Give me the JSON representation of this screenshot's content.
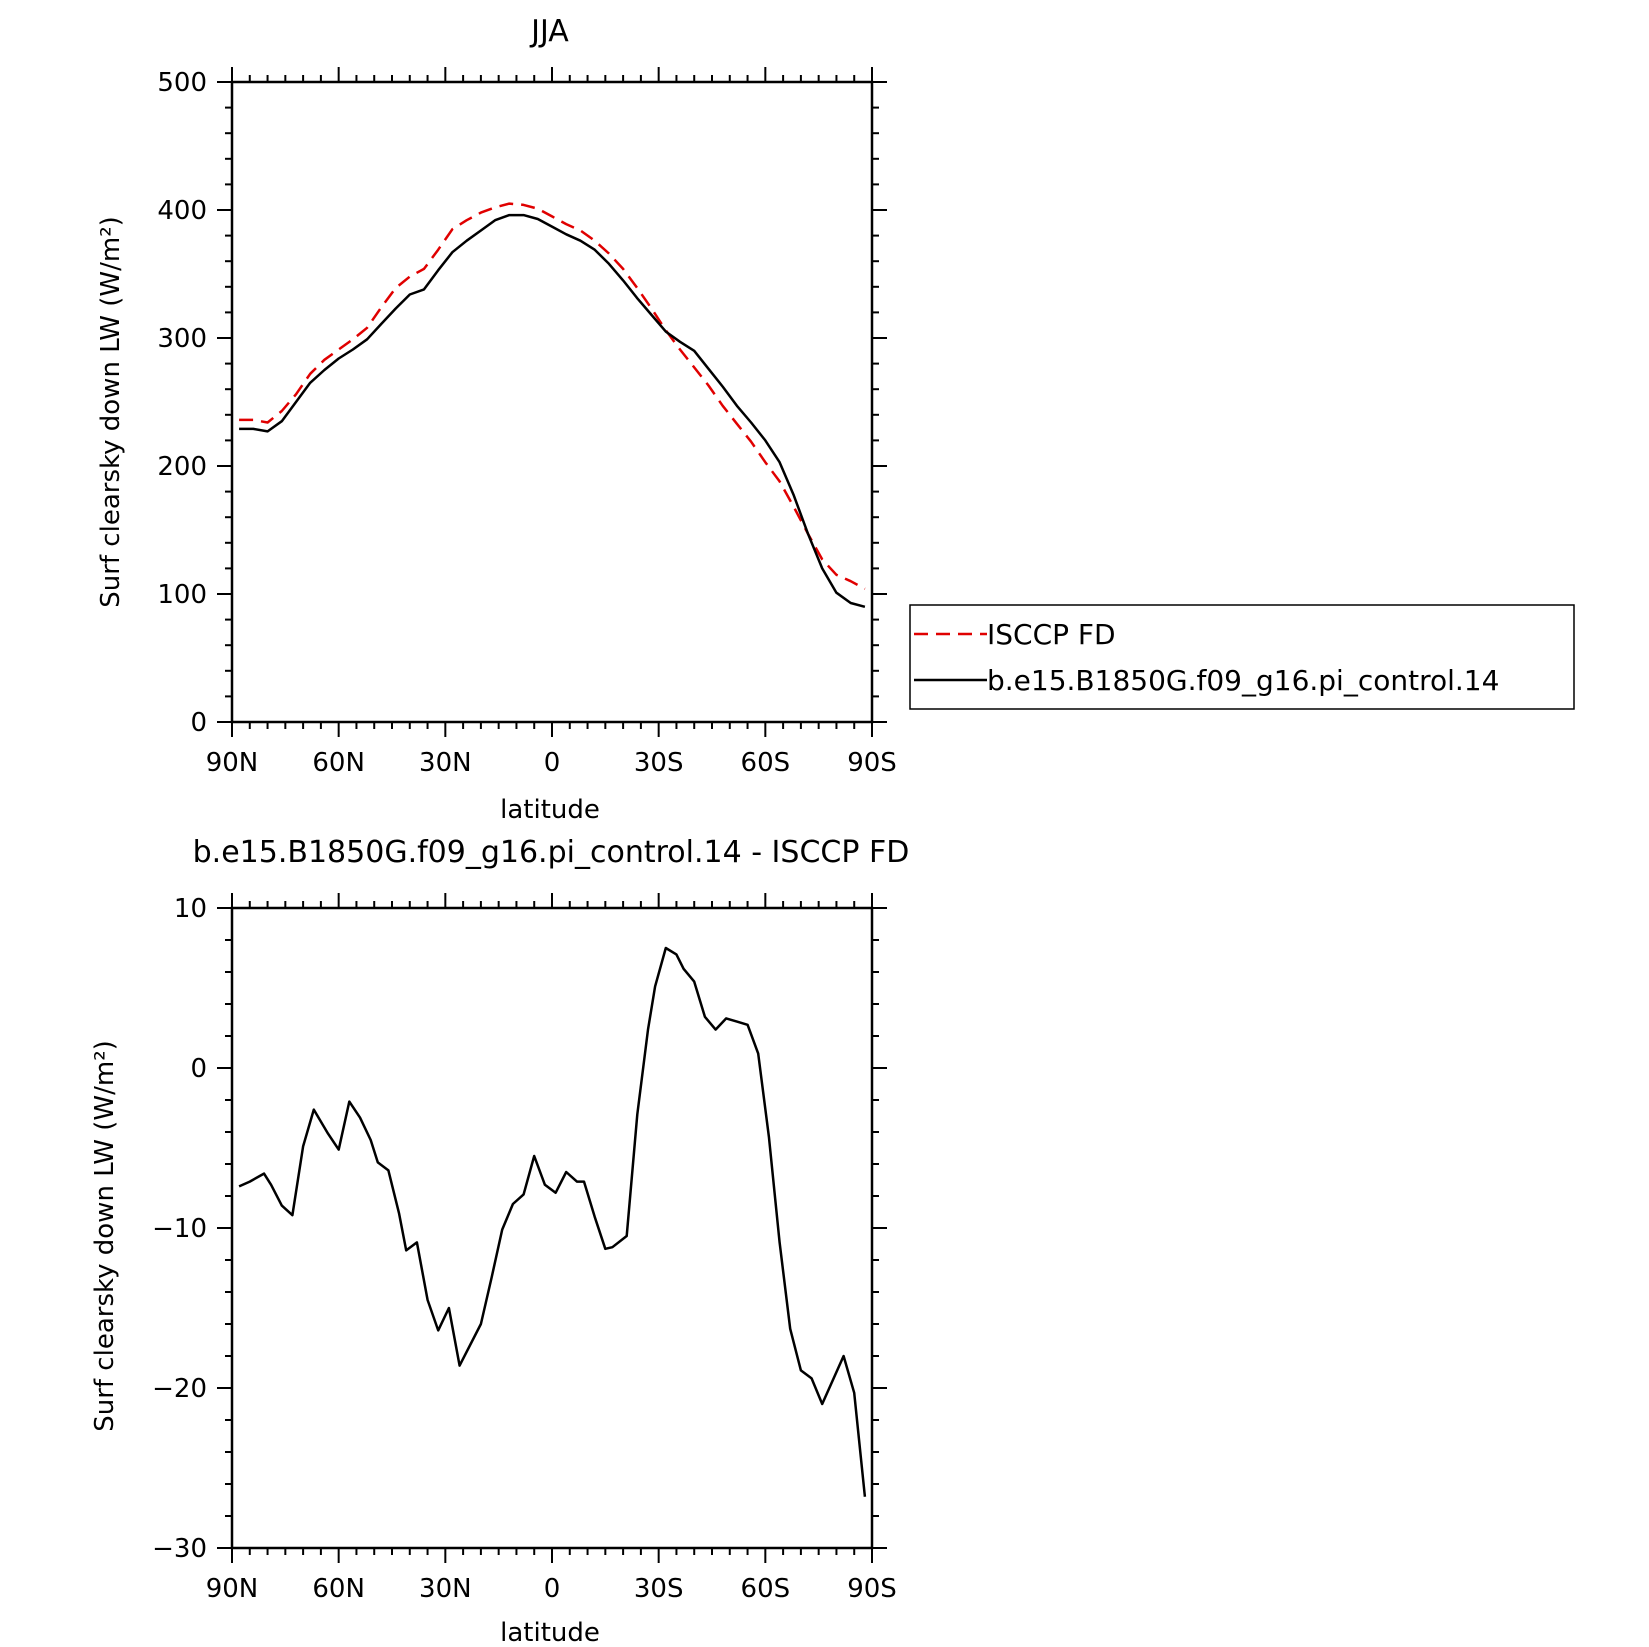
{
  "chart_data": [
    {
      "type": "line",
      "title": "JJA",
      "xlabel": "latitude",
      "ylabel": "Surf clearsky down LW (W/m²)",
      "xlim": [
        90,
        -90
      ],
      "ylim": [
        0,
        500
      ],
      "xticks": [
        90,
        60,
        30,
        0,
        -30,
        -60,
        -90
      ],
      "xtick_labels": [
        "90N",
        "60N",
        "30N",
        "0",
        "30S",
        "60S",
        "90S"
      ],
      "yticks": [
        0,
        100,
        200,
        300,
        400,
        500
      ],
      "ytick_labels": [
        "0",
        "100",
        "200",
        "300",
        "400",
        "500"
      ],
      "legend_position": "right",
      "series": [
        {
          "name": "ISCCP FD",
          "color": "#e00000",
          "dash": "dashed",
          "x": [
            88,
            84,
            80,
            76,
            72,
            68,
            64,
            60,
            56,
            52,
            48,
            44,
            40,
            36,
            32,
            28,
            24,
            20,
            16,
            12,
            8,
            4,
            0,
            -4,
            -8,
            -12,
            -16,
            -20,
            -24,
            -28,
            -32,
            -36,
            -40,
            -44,
            -48,
            -52,
            -56,
            -60,
            -64,
            -68,
            -72,
            -76,
            -80,
            -84,
            -88
          ],
          "y": [
            236,
            236,
            234,
            243,
            256,
            272,
            283,
            291,
            299,
            308,
            324,
            339,
            348,
            354,
            369,
            385,
            392,
            398,
            402,
            405,
            404,
            401,
            395,
            389,
            384,
            376,
            366,
            354,
            339,
            323,
            306,
            291,
            277,
            263,
            247,
            233,
            219,
            203,
            188,
            168,
            147,
            127,
            115,
            110,
            104
          ]
        },
        {
          "name": "b.e15.B1850G.f09_g16.pi_control.14",
          "color": "#000000",
          "dash": "solid",
          "x": [
            88,
            84,
            80,
            76,
            72,
            68,
            64,
            60,
            56,
            52,
            48,
            44,
            40,
            36,
            32,
            28,
            24,
            20,
            16,
            12,
            8,
            4,
            0,
            -4,
            -8,
            -12,
            -16,
            -20,
            -24,
            -28,
            -32,
            -36,
            -40,
            -44,
            -48,
            -52,
            -56,
            -60,
            -64,
            -68,
            -72,
            -76,
            -80,
            -84,
            -88
          ],
          "y": [
            229,
            229,
            227,
            235,
            250,
            265,
            275,
            284,
            291,
            299,
            311,
            323,
            334,
            338,
            353,
            367,
            376,
            384,
            392,
            396,
            396,
            393,
            387,
            381,
            376,
            369,
            358,
            345,
            331,
            318,
            305,
            297,
            290,
            276,
            262,
            247,
            234,
            220,
            203,
            177,
            147,
            120,
            101,
            93,
            90
          ]
        }
      ]
    },
    {
      "type": "line",
      "title": "b.e15.B1850G.f09_g16.pi_control.14 - ISCCP FD",
      "xlabel": "latitude",
      "ylabel": "Surf clearsky down LW (W/m²)",
      "xlim": [
        90,
        -90
      ],
      "ylim": [
        -30,
        10
      ],
      "xticks": [
        90,
        60,
        30,
        0,
        -30,
        -60,
        -90
      ],
      "xtick_labels": [
        "90N",
        "60N",
        "30N",
        "0",
        "30S",
        "60S",
        "90S"
      ],
      "yticks": [
        -30,
        -20,
        -10,
        0,
        10
      ],
      "ytick_labels": [
        "−30",
        "−20",
        "−10",
        "0",
        "10"
      ],
      "series": [
        {
          "color": "#000000",
          "dash": "solid",
          "x": [
            88,
            85,
            81,
            79,
            76,
            73,
            70,
            67,
            63,
            60,
            57,
            54,
            51,
            49,
            46,
            43,
            41,
            38,
            35,
            32,
            29,
            26,
            20,
            17,
            14,
            11,
            8,
            5,
            2,
            -1,
            -4,
            -7,
            -9,
            -12,
            -15,
            -17,
            -21,
            -24,
            -27,
            -29,
            -32,
            -35,
            -37,
            -40,
            -43,
            -46,
            -49,
            -52,
            -55,
            -58,
            -61,
            -64,
            -67,
            -70,
            -73,
            -76,
            -79,
            -82,
            -85,
            -88
          ],
          "y": [
            -7.4,
            -7.1,
            -6.6,
            -7.3,
            -8.6,
            -9.2,
            -4.9,
            -2.6,
            -4.1,
            -5.1,
            -2.1,
            -3.1,
            -4.5,
            -5.9,
            -6.4,
            -9.1,
            -11.4,
            -10.9,
            -14.5,
            -16.4,
            -15.0,
            -18.6,
            -16.0,
            -13.1,
            -10.1,
            -8.5,
            -7.9,
            -5.5,
            -7.3,
            -7.8,
            -6.5,
            -7.1,
            -7.1,
            -9.3,
            -11.3,
            -11.2,
            -10.5,
            -2.9,
            2.4,
            5.1,
            7.5,
            7.1,
            6.2,
            5.4,
            3.2,
            2.4,
            3.1,
            2.9,
            2.7,
            0.9,
            -4.3,
            -10.9,
            -16.3,
            -18.9,
            -19.4,
            -21.0,
            -19.5,
            -18.0,
            -20.3,
            -26.8
          ]
        }
      ]
    }
  ]
}
